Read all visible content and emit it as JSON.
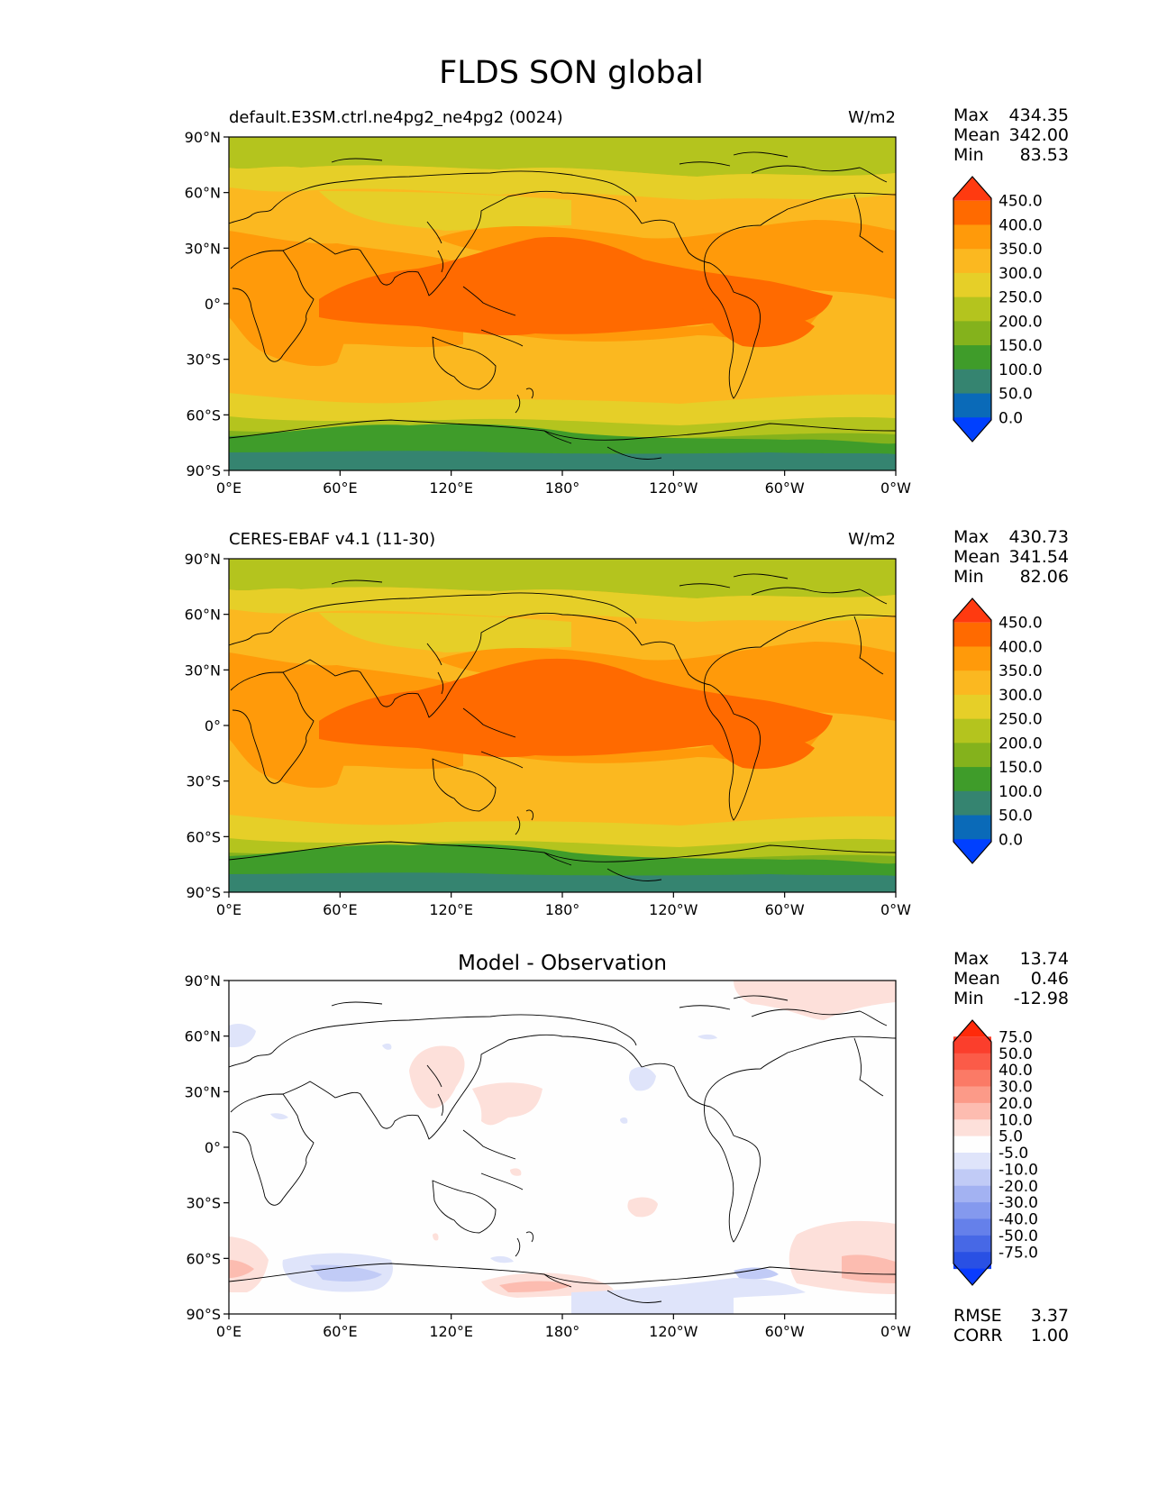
{
  "figure": {
    "title": "FLDS SON global"
  },
  "panels": [
    {
      "id": "model",
      "title_left": "default.E3SM.ctrl.ne4pg2_ne4pg2 (0024)",
      "title_center": "",
      "units": "W/m2",
      "stats": [
        {
          "label": "Max",
          "value": "434.35"
        },
        {
          "label": "Mean",
          "value": "342.00"
        },
        {
          "label": "Min",
          "value": "83.53"
        }
      ],
      "colorbar": {
        "levels": [
          "450.0",
          "400.0",
          "350.0",
          "300.0",
          "250.0",
          "200.0",
          "150.0",
          "100.0",
          "50.0",
          "0.0"
        ],
        "colors": [
          "#ff3a10",
          "#ff6a00",
          "#ff9a0a",
          "#fbb820",
          "#e6cf28",
          "#b4c41e",
          "#84b21c",
          "#3f9c2a",
          "#358470",
          "#0a6ab8",
          "#0040ff"
        ]
      }
    },
    {
      "id": "obs",
      "title_left": "CERES-EBAF v4.1 (11-30)",
      "title_center": "",
      "units": "W/m2",
      "stats": [
        {
          "label": "Max",
          "value": "430.73"
        },
        {
          "label": "Mean",
          "value": "341.54"
        },
        {
          "label": "Min",
          "value": "82.06"
        }
      ],
      "colorbar": {
        "levels": [
          "450.0",
          "400.0",
          "350.0",
          "300.0",
          "250.0",
          "200.0",
          "150.0",
          "100.0",
          "50.0",
          "0.0"
        ],
        "colors": [
          "#ff3a10",
          "#ff6a00",
          "#ff9a0a",
          "#fbb820",
          "#e6cf28",
          "#b4c41e",
          "#84b21c",
          "#3f9c2a",
          "#358470",
          "#0a6ab8",
          "#0040ff"
        ]
      }
    },
    {
      "id": "diff",
      "title_left": "",
      "title_center": "Model - Observation",
      "units": "",
      "stats": [
        {
          "label": "Max",
          "value": "13.74"
        },
        {
          "label": "Mean",
          "value": "0.46"
        },
        {
          "label": "Min",
          "value": "-12.98"
        }
      ],
      "extra_stats": [
        {
          "label": "RMSE",
          "value": "3.37"
        },
        {
          "label": "CORR",
          "value": "1.00"
        }
      ],
      "colorbar": {
        "levels": [
          "75.0",
          "50.0",
          "40.0",
          "30.0",
          "20.0",
          "10.0",
          "5.0",
          "-5.0",
          "-10.0",
          "-20.0",
          "-30.0",
          "-40.0",
          "-50.0",
          "-75.0"
        ],
        "colors": [
          "#ff2a0a",
          "#fb3e2c",
          "#fb5b48",
          "#fb7a66",
          "#fc9a88",
          "#fdbcb0",
          "#fde0da",
          "#fefefe",
          "#dfe4fa",
          "#c1cbf6",
          "#a3b2f2",
          "#8499ee",
          "#6580ea",
          "#4768e6",
          "#2950e4",
          "#0a3cff"
        ]
      }
    }
  ],
  "axes": {
    "lat_ticks": [
      "90°N",
      "60°N",
      "30°N",
      "0°",
      "30°S",
      "60°S",
      "90°S"
    ],
    "lon_ticks": [
      "0°E",
      "60°E",
      "120°E",
      "180°",
      "120°W",
      "60°W",
      "0°W"
    ]
  },
  "chart_data": [
    {
      "type": "heatmap",
      "title": "default.E3SM.ctrl.ne4pg2_ne4pg2 (0024)",
      "variable": "FLDS",
      "season": "SON",
      "units": "W/m2",
      "projection": "PlateCarree, central longitude 180°",
      "x_ticks": [
        "0°E",
        "60°E",
        "120°E",
        "180°",
        "120°W",
        "60°W",
        "0°W"
      ],
      "y_ticks": [
        "90°N",
        "60°N",
        "30°N",
        "0°",
        "30°S",
        "60°S",
        "90°S"
      ],
      "contour_levels": [
        0,
        50,
        100,
        150,
        200,
        250,
        300,
        350,
        400,
        450
      ],
      "max": 434.35,
      "mean": 342.0,
      "min": 83.53
    },
    {
      "type": "heatmap",
      "title": "CERES-EBAF v4.1 (11-30)",
      "variable": "FLDS",
      "season": "SON",
      "units": "W/m2",
      "x_ticks": [
        "0°E",
        "60°E",
        "120°E",
        "180°",
        "120°W",
        "60°W",
        "0°W"
      ],
      "y_ticks": [
        "90°N",
        "60°N",
        "30°N",
        "0°",
        "30°S",
        "60°S",
        "90°S"
      ],
      "contour_levels": [
        0,
        50,
        100,
        150,
        200,
        250,
        300,
        350,
        400,
        450
      ],
      "max": 430.73,
      "mean": 341.54,
      "min": 82.06
    },
    {
      "type": "heatmap",
      "title": "Model - Observation",
      "x_ticks": [
        "0°E",
        "60°E",
        "120°E",
        "180°",
        "120°W",
        "60°W",
        "0°W"
      ],
      "y_ticks": [
        "90°N",
        "60°N",
        "30°N",
        "0°",
        "30°S",
        "60°S",
        "90°S"
      ],
      "contour_levels": [
        -75,
        -50,
        -40,
        -30,
        -20,
        -10,
        -5,
        5,
        10,
        20,
        30,
        40,
        50,
        75
      ],
      "max": 13.74,
      "mean": 0.46,
      "min": -12.98,
      "rmse": 3.37,
      "corr": 1.0
    }
  ]
}
